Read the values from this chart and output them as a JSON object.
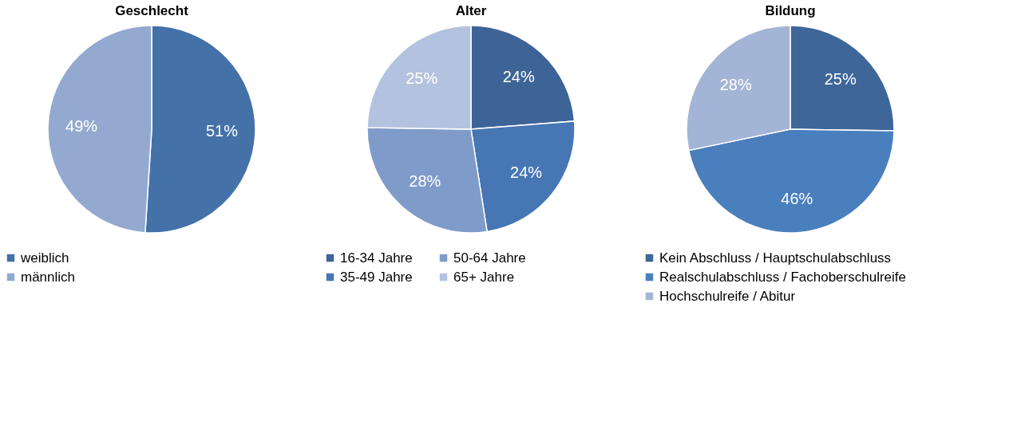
{
  "chart_data": [
    {
      "type": "pie",
      "title": "Geschlecht",
      "categories": [
        "weiblich",
        "männlich"
      ],
      "values": [
        51,
        49
      ],
      "colors": [
        "#4472a8",
        "#93a9d0"
      ],
      "value_labels": [
        "51%",
        "49%"
      ],
      "legend": "bottom"
    },
    {
      "type": "pie",
      "title": "Alter",
      "categories": [
        "16-34 Jahre",
        "35-49 Jahre",
        "50-64 Jahre",
        "65+ Jahre"
      ],
      "values": [
        24,
        24,
        28,
        25
      ],
      "colors": [
        "#3e6497",
        "#4676b4",
        "#7f9bc9",
        "#b3c2de"
      ],
      "value_labels": [
        "24%",
        "24%",
        "28%",
        "25%"
      ],
      "legend": "bottom"
    },
    {
      "type": "pie",
      "title": "Bildung",
      "categories": [
        "Kein Abschluss / Hauptschulabschluss",
        "Realschulabschluss / Fachoberschulreife",
        "Hochschulreife / Abitur"
      ],
      "values": [
        25,
        46,
        28
      ],
      "colors": [
        "#3e6699",
        "#4a7fbd",
        "#a3b5d6"
      ],
      "value_labels": [
        "25%",
        "46%",
        "28%"
      ],
      "legend": "bottom"
    }
  ]
}
